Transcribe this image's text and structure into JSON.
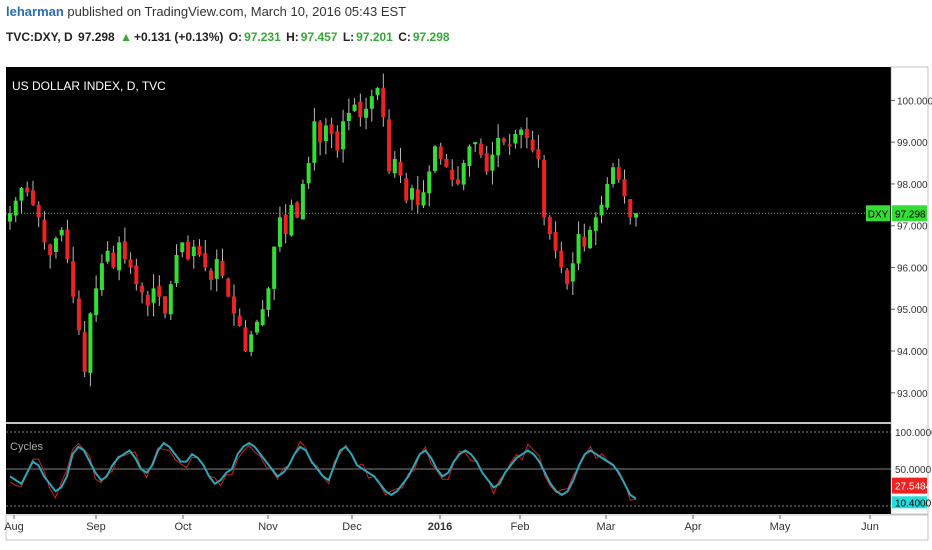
{
  "header": {
    "author": "leharman",
    "published_text": " published on TradingView.com, March 10, 2016 05:43 EST",
    "symbol": "TVC:DXY, D",
    "price": "97.298",
    "change": "+0.131 (+0.13%)",
    "o_label": "O:",
    "o_value": "97.231",
    "h_label": "H:",
    "h_value": "97.457",
    "l_label": "L:",
    "l_value": "97.201",
    "c_label": "C:",
    "c_value": "97.298"
  },
  "colors": {
    "up": "#33dd33",
    "down": "#ee2222",
    "background": "#000000",
    "price_line": "#33dd33",
    "cycle_line": "#2aa7b8",
    "cycle_fast": "#cc2222"
  },
  "chart_data": [
    {
      "type": "candlestick",
      "title": "US DOLLAR INDEX, D, TVC",
      "ylim": [
        92.3,
        100.8
      ],
      "y_ticks": [
        "100.000",
        "99.000",
        "98.000",
        "97.000",
        "96.000",
        "95.000",
        "94.000",
        "93.000"
      ],
      "y_tick_values": [
        100,
        99,
        98,
        97,
        96,
        95,
        94,
        93
      ],
      "x_ticks": [
        "Aug",
        "Sep",
        "Oct",
        "Nov",
        "Dec",
        "2016",
        "Feb",
        "Mar",
        "Apr",
        "May",
        "Jun"
      ],
      "last_price": 97.298,
      "last_price_label": "97.298",
      "symbol_label": "DXY",
      "close_series": [
        97.3,
        97.6,
        97.9,
        97.8,
        97.5,
        97.2,
        96.6,
        96.3,
        96.7,
        96.9,
        96.2,
        95.3,
        94.5,
        93.5,
        94.9,
        95.5,
        96.1,
        96.4,
        96.0,
        96.6,
        96.2,
        96.0,
        95.6,
        95.4,
        95.1,
        95.5,
        95.3,
        94.9,
        95.6,
        96.3,
        96.6,
        96.2,
        96.5,
        96.3,
        96.0,
        95.7,
        96.2,
        95.8,
        95.3,
        94.9,
        94.6,
        94.0,
        94.4,
        94.7,
        95.0,
        95.5,
        96.5,
        97.2,
        96.8,
        97.5,
        97.2,
        98.0,
        98.5,
        99.5,
        99.0,
        99.4,
        99.2,
        98.8,
        99.5,
        99.7,
        99.9,
        99.6,
        99.8,
        100.1,
        100.3,
        99.6,
        98.3,
        98.6,
        98.2,
        97.6,
        97.9,
        97.5,
        97.8,
        98.3,
        98.9,
        98.6,
        98.4,
        98.1,
        98.0,
        98.5,
        98.9,
        99.0,
        98.7,
        98.3,
        98.7,
        99.1,
        99.0,
        98.9,
        99.2,
        99.3,
        99.1,
        98.8,
        98.6,
        97.2,
        96.8,
        96.4,
        96.0,
        95.6,
        96.1,
        96.8,
        96.5,
        96.9,
        97.2,
        97.5,
        98.0,
        98.4,
        98.1,
        97.7,
        97.2,
        97.3
      ],
      "indicator": {
        "title": "Cycles",
        "ylim": [
          0,
          100
        ],
        "levels": [
          100,
          50,
          0
        ],
        "y_ticks": [
          "100.0000",
          "50.0000"
        ],
        "last_fast_value": "27.5484",
        "last_slow_value": "10.4000",
        "slow_series": [
          40,
          35,
          30,
          45,
          60,
          55,
          40,
          30,
          20,
          25,
          40,
          70,
          80,
          75,
          60,
          45,
          35,
          40,
          55,
          65,
          70,
          75,
          65,
          50,
          45,
          55,
          75,
          85,
          80,
          70,
          60,
          60,
          70,
          65,
          55,
          40,
          30,
          35,
          45,
          50,
          70,
          80,
          85,
          80,
          70,
          60,
          50,
          40,
          45,
          55,
          70,
          80,
          75,
          60,
          50,
          40,
          35,
          55,
          75,
          80,
          70,
          55,
          50,
          45,
          40,
          30,
          20,
          15,
          20,
          30,
          40,
          55,
          70,
          75,
          65,
          50,
          40,
          45,
          60,
          70,
          75,
          70,
          60,
          45,
          35,
          25,
          30,
          45,
          55,
          65,
          70,
          75,
          70,
          60,
          45,
          30,
          20,
          15,
          20,
          35,
          55,
          70,
          75,
          70,
          65,
          60,
          55,
          45,
          30,
          15,
          10
        ]
      }
    }
  ]
}
